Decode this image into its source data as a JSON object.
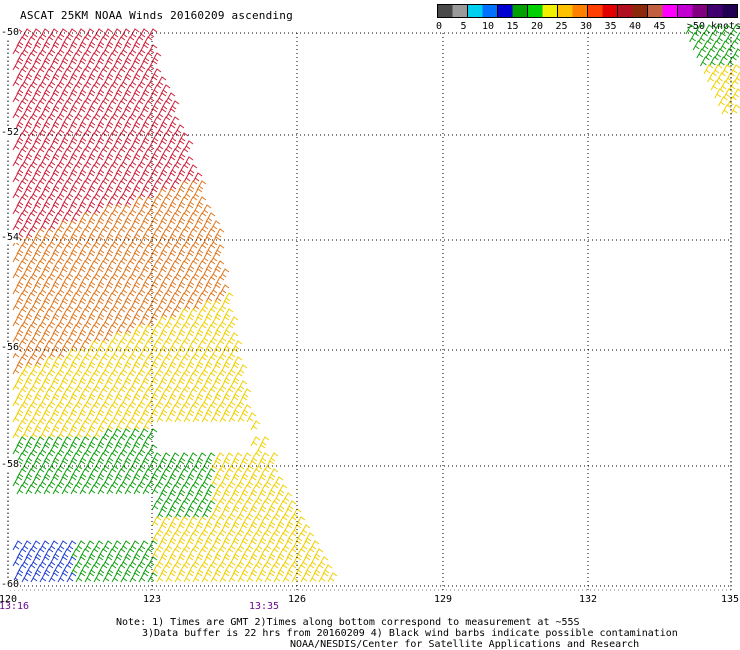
{
  "title": "ASCAT 25KM NOAA Winds 20160209 ascending",
  "legend": {
    "swatches": [
      "#4a4a4a",
      "#9a9a9a",
      "#00d0f0",
      "#0070ff",
      "#0000d0",
      "#00a000",
      "#00d000",
      "#f0f000",
      "#ffc000",
      "#ff8000",
      "#ff4000",
      "#e00000",
      "#b01020",
      "#8a2a0a",
      "#c06040",
      "#ff00ff",
      "#c000d0",
      "#800080",
      "#400070",
      "#200050"
    ],
    "labels": [
      "0",
      "5",
      "10",
      "15",
      "20",
      "25",
      "30",
      "35",
      "40",
      "45",
      ">50 knots"
    ]
  },
  "lat_labels": [
    "-50",
    "-52",
    "-54",
    "-56",
    "-58",
    "-60"
  ],
  "lon_labels": [
    "120",
    "123",
    "126",
    "129",
    "132",
    "135"
  ],
  "times": [
    "13:16",
    "13:35"
  ],
  "notes": [
    "Note: 1) Times are GMT 2)Times along bottom correspond to measurement at ~55S",
    "3)Data buffer is 22 hrs from 20160209 4) Black wind barbs indicate possible contamination",
    "NOAA/NESDIS/Center for Satellite Applications and Research"
  ],
  "colors": {
    "grid": "#000000",
    "wind_red": "#d0203a",
    "wind_orange": "#e07820",
    "wind_yellow": "#f0d000",
    "wind_green": "#10a010",
    "wind_blue": "#2040d0"
  }
}
